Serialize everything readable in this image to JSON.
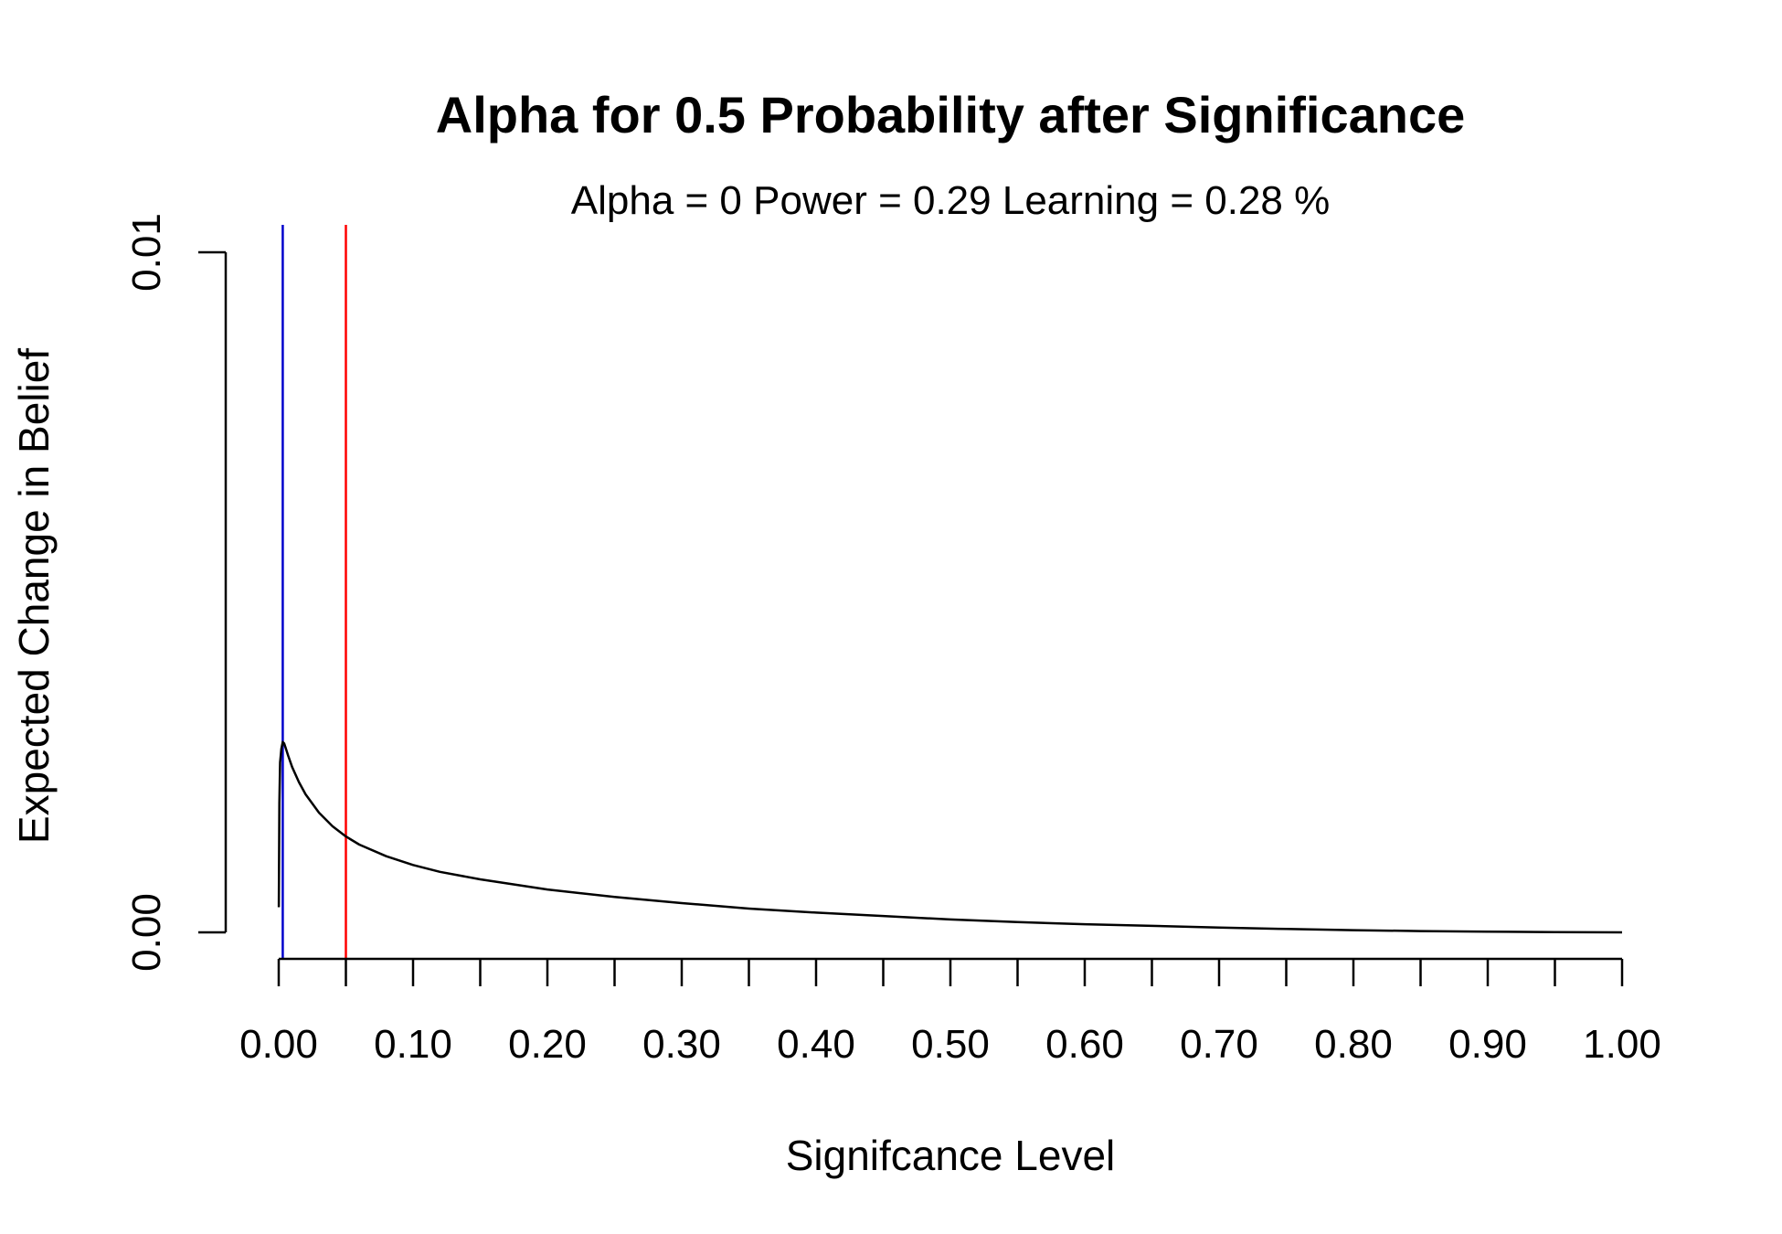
{
  "chart_data": {
    "type": "line",
    "title": "Alpha for 0.5 Probability after Significance",
    "subtitle": "Alpha =  0  Power =  0.29 Learning = 0.28 %",
    "xlabel": "Signifcance Level",
    "ylabel": "Expected Change in Belief",
    "xlim": [
      0,
      1
    ],
    "ylim": [
      0,
      0.01
    ],
    "x_ticks": [
      0,
      0.05,
      0.1,
      0.15,
      0.2,
      0.25,
      0.3,
      0.35,
      0.4,
      0.45,
      0.5,
      0.55,
      0.6,
      0.65,
      0.7,
      0.75,
      0.8,
      0.85,
      0.9,
      0.95,
      1.0
    ],
    "x_tick_labels": [
      "0.00",
      "0.10",
      "0.20",
      "0.30",
      "0.40",
      "0.50",
      "0.60",
      "0.70",
      "0.80",
      "0.90",
      "1.00"
    ],
    "x_tick_label_values": [
      0,
      0.1,
      0.2,
      0.3,
      0.4,
      0.5,
      0.6,
      0.7,
      0.8,
      0.9,
      1.0
    ],
    "y_ticks": [
      0,
      0.01
    ],
    "y_tick_labels": [
      "0.00",
      "0.01"
    ],
    "vlines": [
      {
        "x": 0.003,
        "color": "#0000cc"
      },
      {
        "x": 0.05,
        "color": "#ff0000"
      }
    ],
    "series": [
      {
        "color": "#000000",
        "x": [
          0.0001,
          0.0005,
          0.001,
          0.0015,
          0.002,
          0.003,
          0.004,
          0.005,
          0.007,
          0.01,
          0.015,
          0.02,
          0.03,
          0.04,
          0.05,
          0.06,
          0.08,
          0.1,
          0.12,
          0.15,
          0.2,
          0.25,
          0.3,
          0.35,
          0.4,
          0.45,
          0.5,
          0.55,
          0.6,
          0.65,
          0.7,
          0.75,
          0.8,
          0.85,
          0.9,
          0.95,
          1.0
        ],
        "y": [
          0.00037,
          0.0019,
          0.0025,
          0.0026,
          0.0027,
          0.0028,
          0.00278,
          0.00272,
          0.0026,
          0.00243,
          0.00221,
          0.00203,
          0.00176,
          0.00156,
          0.00141,
          0.00129,
          0.00112,
          0.00099,
          0.00089,
          0.00078,
          0.00063,
          0.00052,
          0.00043,
          0.00035,
          0.00029,
          0.00024,
          0.00019,
          0.00015,
          0.00012,
          9.5e-05,
          7e-05,
          5e-05,
          3.2e-05,
          1.9e-05,
          1e-05,
          4e-06,
          0.0
        ]
      }
    ]
  }
}
